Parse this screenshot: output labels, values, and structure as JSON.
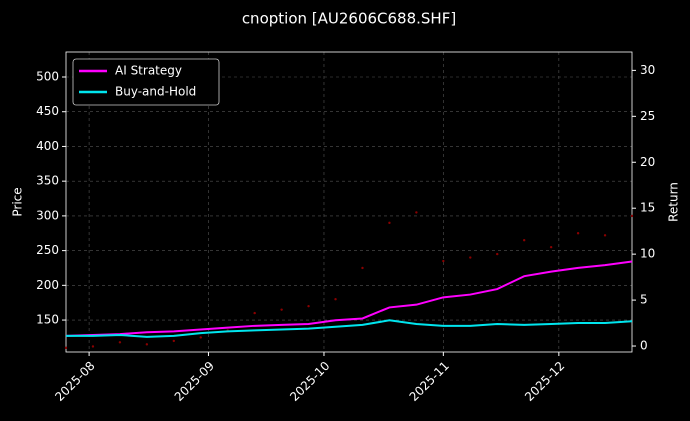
{
  "chart_data": {
    "type": "line",
    "title": "cnoption [AU2606C688.SHF]",
    "ylabel": "Price",
    "y2label": "Return",
    "x": [
      0,
      7,
      14,
      21,
      28,
      35,
      42,
      49,
      56,
      63,
      70,
      77,
      84,
      91,
      98,
      105,
      112,
      119,
      126,
      133,
      140,
      147
    ],
    "xlim": [
      0,
      147
    ],
    "xticks": [
      {
        "value": 6,
        "label": "2025-08"
      },
      {
        "value": 37,
        "label": "2025-09"
      },
      {
        "value": 67,
        "label": "2025-10"
      },
      {
        "value": 98,
        "label": "2025-11"
      },
      {
        "value": 128,
        "label": "2025-12"
      }
    ],
    "ylim": [
      104,
      536
    ],
    "yticks": [
      150,
      200,
      250,
      300,
      350,
      400,
      450,
      500
    ],
    "y2lim": [
      -0.65,
      32
    ],
    "y2ticks": [
      0,
      5,
      10,
      15,
      20,
      25,
      30
    ],
    "grid": true,
    "legend": "upper left",
    "price": {
      "color": "#8b0000",
      "values": [
        110,
        112,
        118,
        115,
        120,
        125,
        135,
        160,
        165,
        170,
        180,
        225,
        290,
        305,
        235,
        240,
        245,
        265,
        255,
        275,
        272,
        300
      ]
    },
    "series": [
      {
        "name": "AI Strategy",
        "color": "#ff00ff",
        "axis": "y2",
        "values": [
          1.1,
          1.2,
          1.3,
          1.5,
          1.6,
          1.8,
          2.0,
          2.2,
          2.3,
          2.4,
          2.8,
          3.0,
          4.2,
          4.5,
          5.3,
          5.6,
          6.2,
          7.6,
          8.1,
          8.5,
          8.8,
          9.2
        ]
      },
      {
        "name": "Buy-and-Hold",
        "color": "#00e5ee",
        "axis": "y2",
        "values": [
          1.1,
          1.1,
          1.2,
          1.0,
          1.1,
          1.4,
          1.6,
          1.7,
          1.8,
          1.9,
          2.1,
          2.3,
          2.8,
          2.4,
          2.2,
          2.2,
          2.4,
          2.3,
          2.4,
          2.5,
          2.5,
          2.7
        ]
      }
    ]
  }
}
